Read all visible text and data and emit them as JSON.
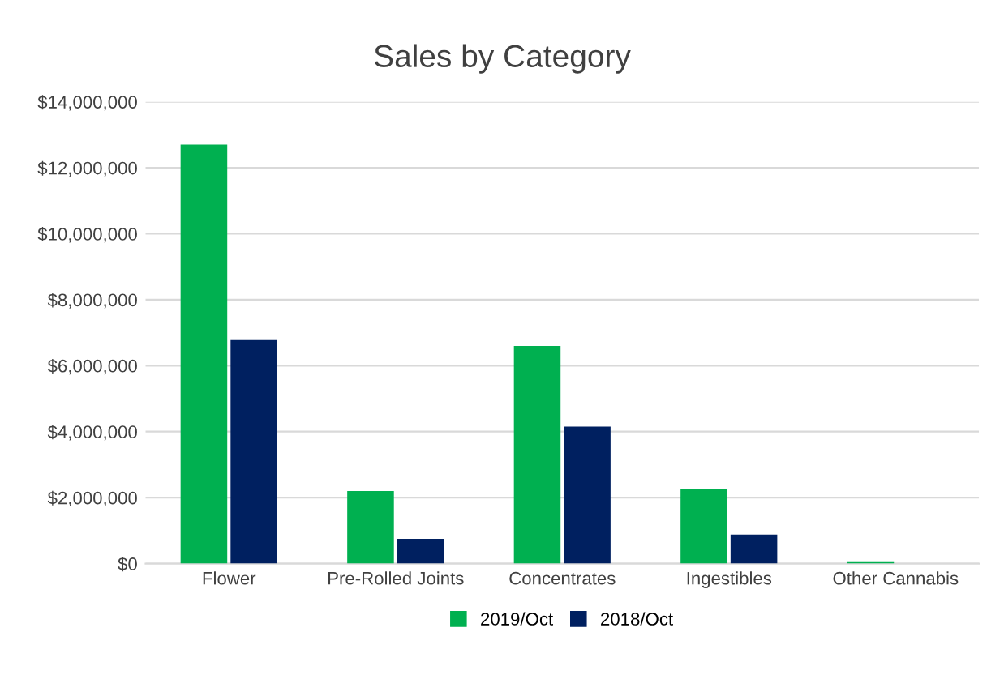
{
  "chart_data": {
    "type": "bar",
    "title": "Sales by Category",
    "categories": [
      "Flower",
      "Pre-Rolled Joints",
      "Concentrates",
      "Ingestibles",
      "Other Cannabis"
    ],
    "series": [
      {
        "name": "2019/Oct",
        "color": "#00b050",
        "values": [
          12700000,
          2200000,
          6600000,
          2250000,
          70000
        ]
      },
      {
        "name": "2018/Oct",
        "color": "#002060",
        "values": [
          6800000,
          750000,
          4150000,
          880000,
          0
        ]
      }
    ],
    "ylim": [
      0,
      14000000
    ],
    "yticks": [
      {
        "value": 0,
        "label": "$0"
      },
      {
        "value": 2000000,
        "label": "$2,000,000"
      },
      {
        "value": 4000000,
        "label": "$4,000,000"
      },
      {
        "value": 6000000,
        "label": "$6,000,000"
      },
      {
        "value": 8000000,
        "label": "$8,000,000"
      },
      {
        "value": 10000000,
        "label": "$10,000,000"
      },
      {
        "value": 12000000,
        "label": "$12,000,000"
      },
      {
        "value": 14000000,
        "label": "$14,000,000"
      }
    ],
    "grid": "y",
    "legend": "bottom"
  }
}
